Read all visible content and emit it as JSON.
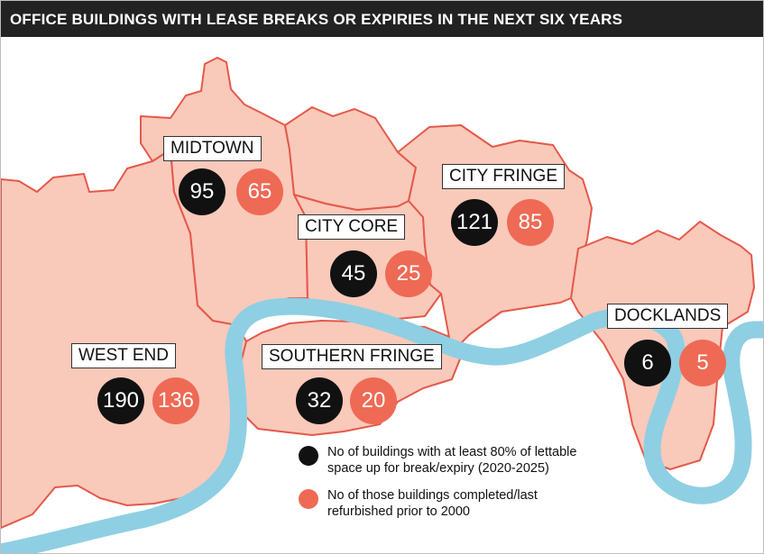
{
  "title": "OFFICE BUILDINGS WITH LEASE BREAKS OR EXPIRIES IN THE NEXT SIX YEARS",
  "colors": {
    "title_bg": "#222222",
    "area_fill": "#f9c9ba",
    "area_border": "#e4594a",
    "river": "#8fcfe3",
    "black_marker": "#111111",
    "red_marker": "#ee6a55"
  },
  "districts": [
    {
      "name": "MIDTOWN",
      "black": "95",
      "red": "65"
    },
    {
      "name": "CITY CORE",
      "black": "45",
      "red": "25"
    },
    {
      "name": "CITY FRINGE",
      "black": "121",
      "red": "85"
    },
    {
      "name": "WEST END",
      "black": "190",
      "red": "136"
    },
    {
      "name": "SOUTHERN FRINGE",
      "black": "32",
      "red": "20"
    },
    {
      "name": "DOCKLANDS",
      "black": "6",
      "red": "5"
    }
  ],
  "legend": {
    "black_line1": "No of buildings with at least 80% of lettable",
    "black_line2": "space up for break/expiry (2020-2025)",
    "red_line1": "No of those buildings completed/last",
    "red_line2": "refurbished prior to 2000"
  }
}
